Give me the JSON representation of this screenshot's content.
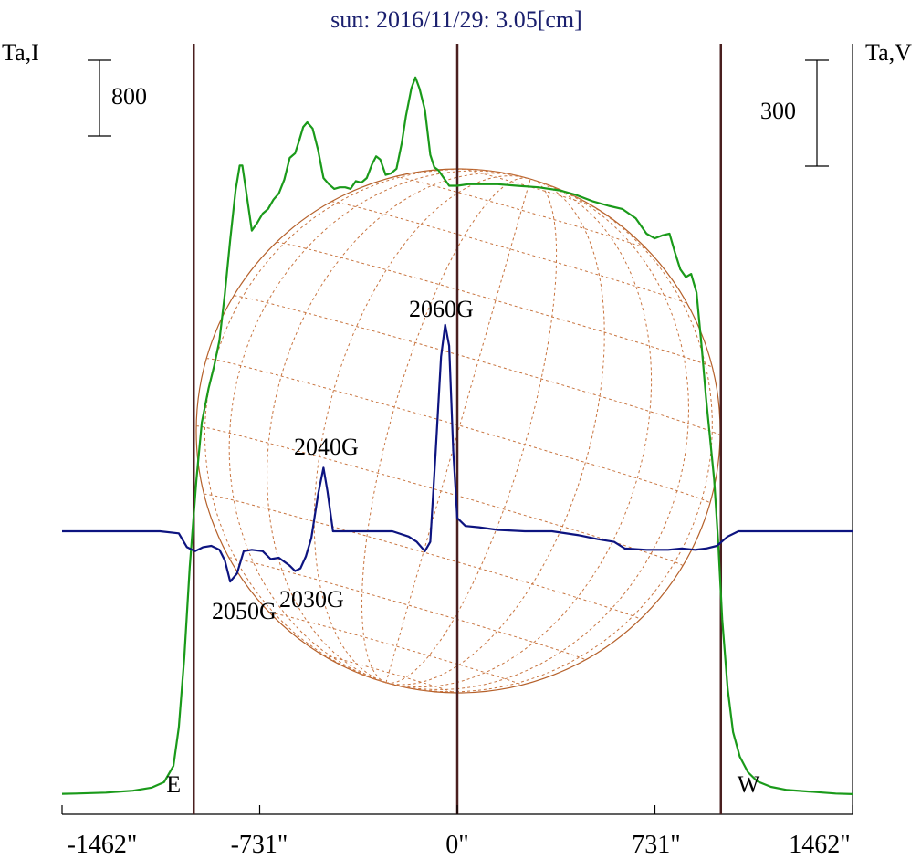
{
  "chart_data": {
    "type": "line",
    "title": "sun: 2016/11/29: 3.05[cm]",
    "ylabel_left": "Ta,I",
    "ylabel_right": "Ta,V",
    "xlim": [
      -1462,
      1462
    ],
    "x_ticks": [
      {
        "value": -1462,
        "label": "-1462\""
      },
      {
        "value": -731,
        "label": "-731\""
      },
      {
        "value": 0,
        "label": "0\""
      },
      {
        "value": 731,
        "label": "731\""
      },
      {
        "value": 1462,
        "label": "1462\""
      }
    ],
    "limb_markers": [
      {
        "value": -975,
        "label": "E"
      },
      {
        "value": 975,
        "label": "W"
      }
    ],
    "scale_bars": [
      {
        "side": "left",
        "label": "800"
      },
      {
        "side": "right",
        "label": "300"
      }
    ],
    "annotations": [
      {
        "label": "2060G",
        "x": -37
      },
      {
        "label": "2040G",
        "x": -455
      },
      {
        "label": "2030G",
        "x": -535
      },
      {
        "label": "2050G",
        "x": -765
      }
    ],
    "series": [
      {
        "color": "#1a9a1a",
        "axis": "left",
        "points": [
          [
            -1462,
            20
          ],
          [
            -1412,
            22
          ],
          [
            -1300,
            28
          ],
          [
            -1200,
            40
          ],
          [
            -1130,
            60
          ],
          [
            -1085,
            95
          ],
          [
            -1050,
            200
          ],
          [
            -1030,
            450
          ],
          [
            -1010,
            900
          ],
          [
            -990,
            1480
          ],
          [
            -965,
            2050
          ],
          [
            -945,
            2420
          ],
          [
            -920,
            2640
          ],
          [
            -900,
            2780
          ],
          [
            -880,
            2950
          ],
          [
            -860,
            3250
          ],
          [
            -840,
            3600
          ],
          [
            -820,
            3920
          ],
          [
            -805,
            4080
          ],
          [
            -795,
            4080
          ],
          [
            -780,
            3900
          ],
          [
            -760,
            3660
          ],
          [
            -740,
            3710
          ],
          [
            -720,
            3770
          ],
          [
            -700,
            3800
          ],
          [
            -680,
            3860
          ],
          [
            -660,
            3900
          ],
          [
            -640,
            3990
          ],
          [
            -620,
            4130
          ],
          [
            -600,
            4160
          ],
          [
            -585,
            4240
          ],
          [
            -570,
            4330
          ],
          [
            -555,
            4360
          ],
          [
            -535,
            4320
          ],
          [
            -515,
            4180
          ],
          [
            -495,
            4000
          ],
          [
            -475,
            3960
          ],
          [
            -455,
            3930
          ],
          [
            -435,
            3940
          ],
          [
            -415,
            3940
          ],
          [
            -395,
            3930
          ],
          [
            -375,
            3980
          ],
          [
            -355,
            3970
          ],
          [
            -335,
            4000
          ],
          [
            -315,
            4090
          ],
          [
            -300,
            4140
          ],
          [
            -285,
            4120
          ],
          [
            -265,
            4020
          ],
          [
            -245,
            4030
          ],
          [
            -225,
            4060
          ],
          [
            -205,
            4230
          ],
          [
            -190,
            4400
          ],
          [
            -170,
            4580
          ],
          [
            -155,
            4650
          ],
          [
            -140,
            4580
          ],
          [
            -120,
            4440
          ],
          [
            -100,
            4150
          ],
          [
            -85,
            4070
          ],
          [
            -70,
            4050
          ],
          [
            -50,
            4000
          ],
          [
            -30,
            3950
          ],
          [
            0,
            3950
          ],
          [
            40,
            3960
          ],
          [
            100,
            3960
          ],
          [
            150,
            3960
          ],
          [
            220,
            3950
          ],
          [
            300,
            3940
          ],
          [
            380,
            3920
          ],
          [
            440,
            3890
          ],
          [
            500,
            3850
          ],
          [
            560,
            3820
          ],
          [
            610,
            3800
          ],
          [
            660,
            3740
          ],
          [
            700,
            3640
          ],
          [
            730,
            3610
          ],
          [
            760,
            3630
          ],
          [
            785,
            3640
          ],
          [
            805,
            3520
          ],
          [
            825,
            3410
          ],
          [
            845,
            3360
          ],
          [
            865,
            3380
          ],
          [
            885,
            3260
          ],
          [
            905,
            2890
          ],
          [
            920,
            2580
          ],
          [
            935,
            2320
          ],
          [
            950,
            2050
          ],
          [
            965,
            1650
          ],
          [
            980,
            1150
          ],
          [
            1000,
            700
          ],
          [
            1020,
            420
          ],
          [
            1045,
            260
          ],
          [
            1075,
            160
          ],
          [
            1110,
            100
          ],
          [
            1160,
            65
          ],
          [
            1220,
            45
          ],
          [
            1300,
            35
          ],
          [
            1400,
            22
          ],
          [
            1462,
            18
          ]
        ]
      },
      {
        "color": "#0d1480",
        "axis": "right",
        "points": [
          [
            -1462,
            0
          ],
          [
            -1300,
            0
          ],
          [
            -1200,
            0
          ],
          [
            -1100,
            0
          ],
          [
            -1030,
            -8
          ],
          [
            -1000,
            -60
          ],
          [
            -970,
            -75
          ],
          [
            -940,
            -60
          ],
          [
            -910,
            -55
          ],
          [
            -880,
            -70
          ],
          [
            -860,
            -110
          ],
          [
            -840,
            -190
          ],
          [
            -815,
            -160
          ],
          [
            -790,
            -75
          ],
          [
            -760,
            -70
          ],
          [
            -720,
            -75
          ],
          [
            -690,
            -105
          ],
          [
            -660,
            -100
          ],
          [
            -620,
            -130
          ],
          [
            -600,
            -150
          ],
          [
            -580,
            -140
          ],
          [
            -560,
            -95
          ],
          [
            -540,
            -25
          ],
          [
            -515,
            140
          ],
          [
            -495,
            240
          ],
          [
            -480,
            150
          ],
          [
            -460,
            0
          ],
          [
            -420,
            0
          ],
          [
            -360,
            0
          ],
          [
            -300,
            0
          ],
          [
            -240,
            0
          ],
          [
            -180,
            -20
          ],
          [
            -150,
            -40
          ],
          [
            -120,
            -75
          ],
          [
            -100,
            -40
          ],
          [
            -80,
            300
          ],
          [
            -60,
            660
          ],
          [
            -45,
            780
          ],
          [
            -30,
            700
          ],
          [
            -15,
            300
          ],
          [
            0,
            50
          ],
          [
            30,
            20
          ],
          [
            80,
            15
          ],
          [
            150,
            5
          ],
          [
            250,
            0
          ],
          [
            350,
            0
          ],
          [
            450,
            -15
          ],
          [
            520,
            -30
          ],
          [
            580,
            -40
          ],
          [
            620,
            -65
          ],
          [
            700,
            -70
          ],
          [
            780,
            -70
          ],
          [
            830,
            -65
          ],
          [
            880,
            -70
          ],
          [
            920,
            -65
          ],
          [
            960,
            -55
          ],
          [
            1000,
            -20
          ],
          [
            1040,
            0
          ],
          [
            1100,
            0
          ],
          [
            1200,
            0
          ],
          [
            1300,
            0
          ],
          [
            1462,
            0
          ]
        ]
      }
    ]
  }
}
